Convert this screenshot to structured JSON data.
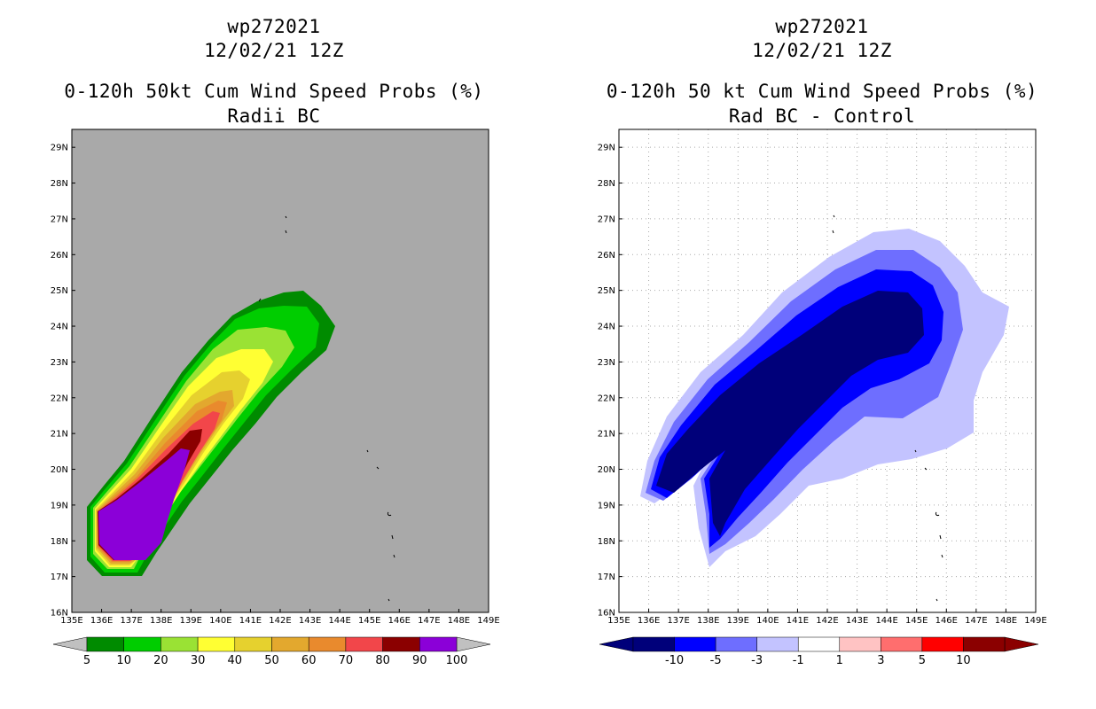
{
  "panels": [
    {
      "line1": "wp272021",
      "line2": "12/02/21 12Z",
      "line3": "0-120h 50kt Cum Wind Speed Probs (%)",
      "line4": "Radii BC"
    },
    {
      "line1": "wp272021",
      "line2": "12/02/21 12Z",
      "line3": "0-120h 50 kt Cum Wind Speed Probs (%)",
      "line4": "Rad BC - Control"
    }
  ],
  "chart_data": [
    {
      "type": "heatmap",
      "subtype": "filled-contour map",
      "title": "0-120h 50kt Cum Wind Speed Probs (%) Radii BC",
      "background": "gray",
      "grid": false,
      "xlim": [
        135,
        149
      ],
      "ylim": [
        16,
        29.5
      ],
      "x_ticks": [
        "135E",
        "136E",
        "137E",
        "138E",
        "139E",
        "140E",
        "141E",
        "142E",
        "143E",
        "144E",
        "145E",
        "146E",
        "147E",
        "148E",
        "149E"
      ],
      "y_ticks": [
        "16N",
        "17N",
        "18N",
        "19N",
        "20N",
        "21N",
        "22N",
        "23N",
        "24N",
        "25N",
        "26N",
        "27N",
        "28N",
        "29N"
      ],
      "colorbar": {
        "labels": [
          "5",
          "10",
          "20",
          "30",
          "40",
          "50",
          "60",
          "70",
          "80",
          "90",
          "100"
        ],
        "colors": [
          "#008b00",
          "#00cd00",
          "#9ae234",
          "#ffff33",
          "#e6d12e",
          "#e3a82e",
          "#e98a2d",
          "#f2464a",
          "#8b0000",
          "#8b00d8"
        ]
      },
      "max_region": "~100% centered near 18.5N 137.5E; contours extend NE to ~24.5N 143E"
    },
    {
      "type": "heatmap",
      "subtype": "filled-contour difference map",
      "title": "0-120h 50 kt Cum Wind Speed Probs (%) Rad BC - Control",
      "background": "white",
      "grid": true,
      "xlim": [
        135,
        149
      ],
      "ylim": [
        16,
        29.5
      ],
      "x_ticks": [
        "135E",
        "136E",
        "137E",
        "138E",
        "139E",
        "140E",
        "141E",
        "142E",
        "143E",
        "144E",
        "145E",
        "146E",
        "147E",
        "148E",
        "149E"
      ],
      "y_ticks": [
        "16N",
        "17N",
        "18N",
        "19N",
        "20N",
        "21N",
        "22N",
        "23N",
        "24N",
        "25N",
        "26N",
        "27N",
        "28N",
        "29N"
      ],
      "colorbar": {
        "labels": [
          "-10",
          "-5",
          "-3",
          "-1",
          "1",
          "3",
          "5",
          "10"
        ],
        "colors": [
          "#00007a",
          "#0000ff",
          "#6e6eff",
          "#c3c3ff",
          "#ffffff",
          "#ffc3c3",
          "#ff6e6e",
          "#ff0000",
          "#8b0000"
        ]
      },
      "min_region": "< -10 over 18N-25N, 136E-145E"
    }
  ]
}
